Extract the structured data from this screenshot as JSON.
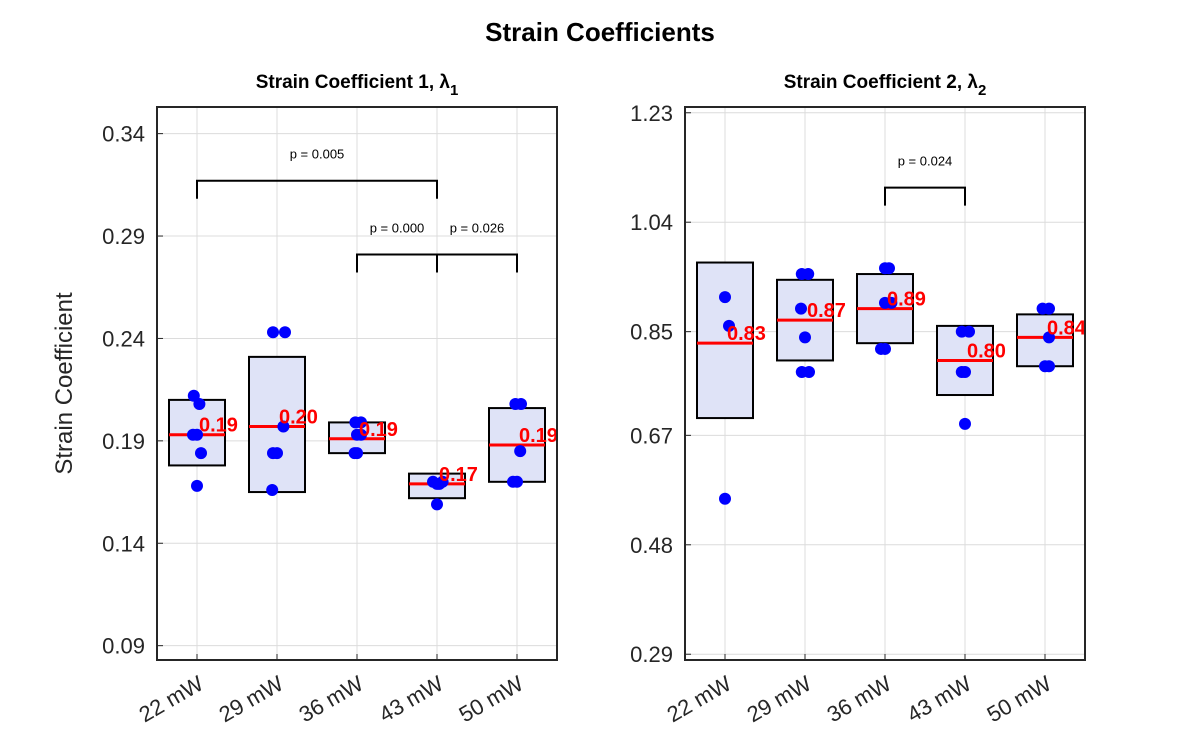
{
  "figure": {
    "title": "Strain Coefficients"
  },
  "colors": {
    "box_fill": "#dfe3f7",
    "box_edge": "#000000",
    "median": "#ff0000",
    "points": "#0000ff",
    "median_label": "#ff0000",
    "grid": "#dcdcdc"
  },
  "chart_data": [
    {
      "type": "box",
      "title": "Strain Coefficient 1, λ",
      "title_subscript": "1",
      "ylabel": "Strain Coefficient",
      "xlabel": "",
      "categories": [
        "22 mW",
        "29 mW",
        "36 mW",
        "43 mW",
        "50 mW"
      ],
      "ylim": [
        0.083,
        0.353
      ],
      "yticks": [
        0.09,
        0.14,
        0.19,
        0.24,
        0.29,
        0.34
      ],
      "ytick_labels": [
        "0.09",
        "0.14",
        "0.19",
        "0.24",
        "0.29",
        "0.34"
      ],
      "grid": true,
      "boxes": [
        {
          "category": "22 mW",
          "q1": 0.178,
          "median": 0.193,
          "q3": 0.21,
          "median_label": "0.19",
          "points": [
            [
              -0.04,
              0.212
            ],
            [
              0.03,
              0.208
            ],
            [
              -0.05,
              0.193
            ],
            [
              0.0,
              0.193
            ],
            [
              0.05,
              0.184
            ],
            [
              0.0,
              0.168
            ]
          ]
        },
        {
          "category": "29 mW",
          "q1": 0.165,
          "median": 0.197,
          "q3": 0.231,
          "median_label": "0.20",
          "points": [
            [
              -0.05,
              0.243
            ],
            [
              0.1,
              0.243
            ],
            [
              0.08,
              0.197
            ],
            [
              -0.05,
              0.184
            ],
            [
              0.0,
              0.184
            ],
            [
              -0.06,
              0.166
            ]
          ]
        },
        {
          "category": "36 mW",
          "q1": 0.184,
          "median": 0.191,
          "q3": 0.199,
          "median_label": "0.19",
          "points": [
            [
              -0.02,
              0.199
            ],
            [
              0.05,
              0.199
            ],
            [
              0.0,
              0.193
            ],
            [
              0.05,
              0.193
            ],
            [
              -0.03,
              0.184
            ],
            [
              0.0,
              0.184
            ]
          ]
        },
        {
          "category": "43 mW",
          "q1": 0.162,
          "median": 0.169,
          "q3": 0.174,
          "median_label": "0.17",
          "points": [
            [
              -0.05,
              0.17
            ],
            [
              0.07,
              0.17
            ],
            [
              0.0,
              0.169
            ],
            [
              0.03,
              0.169
            ],
            [
              0.0,
              0.159
            ]
          ]
        },
        {
          "category": "50 mW",
          "q1": 0.17,
          "median": 0.188,
          "q3": 0.206,
          "median_label": "0.19",
          "points": [
            [
              -0.02,
              0.208
            ],
            [
              0.05,
              0.208
            ],
            [
              0.04,
              0.185
            ],
            [
              -0.05,
              0.17
            ],
            [
              0.0,
              0.17
            ]
          ]
        }
      ],
      "significance": [
        {
          "from": "22 mW",
          "to": "43 mW",
          "y": 0.317,
          "label": "p = 0.005"
        },
        {
          "from": "36 mW",
          "to": "43 mW",
          "y": 0.281,
          "label": "p = 0.000"
        },
        {
          "from": "43 mW",
          "to": "50 mW",
          "y": 0.281,
          "label": "p = 0.026"
        }
      ]
    },
    {
      "type": "box",
      "title": "Strain Coefficient 2, λ",
      "title_subscript": "2",
      "ylabel": "",
      "xlabel": "",
      "categories": [
        "22 mW",
        "29 mW",
        "36 mW",
        "43 mW",
        "50 mW"
      ],
      "ylim": [
        0.28,
        1.24
      ],
      "yticks": [
        0.29,
        0.48,
        0.67,
        0.85,
        1.04,
        1.23
      ],
      "ytick_labels": [
        "0.29",
        "0.48",
        "0.67",
        "0.85",
        "1.04",
        "1.23"
      ],
      "grid": true,
      "boxes": [
        {
          "category": "22 mW",
          "q1": 0.7,
          "median": 0.83,
          "q3": 0.97,
          "median_label": "0.83",
          "points": [
            [
              0.0,
              0.91
            ],
            [
              0.05,
              0.86
            ],
            [
              0.0,
              0.56
            ]
          ]
        },
        {
          "category": "29 mW",
          "q1": 0.8,
          "median": 0.87,
          "q3": 0.94,
          "median_label": "0.87",
          "points": [
            [
              -0.04,
              0.95
            ],
            [
              0.04,
              0.95
            ],
            [
              -0.05,
              0.89
            ],
            [
              0.0,
              0.84
            ],
            [
              -0.04,
              0.78
            ],
            [
              0.05,
              0.78
            ]
          ]
        },
        {
          "category": "36 mW",
          "q1": 0.83,
          "median": 0.89,
          "q3": 0.95,
          "median_label": "0.89",
          "points": [
            [
              0.0,
              0.96
            ],
            [
              0.05,
              0.96
            ],
            [
              0.0,
              0.9
            ],
            [
              0.08,
              0.9
            ],
            [
              -0.05,
              0.82
            ],
            [
              0.0,
              0.82
            ]
          ]
        },
        {
          "category": "43 mW",
          "q1": 0.74,
          "median": 0.8,
          "q3": 0.86,
          "median_label": "0.80",
          "points": [
            [
              -0.04,
              0.85
            ],
            [
              0.05,
              0.85
            ],
            [
              -0.04,
              0.78
            ],
            [
              0.0,
              0.78
            ],
            [
              0.0,
              0.69
            ]
          ]
        },
        {
          "category": "50 mW",
          "q1": 0.79,
          "median": 0.84,
          "q3": 0.88,
          "median_label": "0.84",
          "points": [
            [
              -0.03,
              0.89
            ],
            [
              0.05,
              0.89
            ],
            [
              0.05,
              0.84
            ],
            [
              0.0,
              0.79
            ],
            [
              0.05,
              0.79
            ]
          ]
        }
      ],
      "significance": [
        {
          "from": "36 mW",
          "to": "43 mW",
          "y": 1.1,
          "label": "p = 0.024"
        }
      ]
    }
  ]
}
